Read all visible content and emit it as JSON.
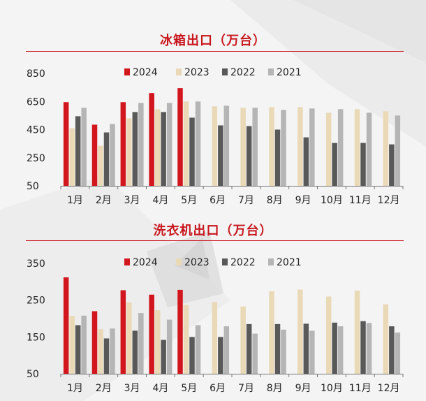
{
  "colors": {
    "accent": "#c8161d",
    "y2024": "#d2161e",
    "y2023": "#ead9b7",
    "y2022": "#595959",
    "y2021": "#b5b5b5"
  },
  "legend": [
    "2024",
    "2023",
    "2022",
    "2021"
  ],
  "chart_data": [
    {
      "type": "bar",
      "title": "冰箱出口（万台）",
      "categories": [
        "1月",
        "2月",
        "3月",
        "4月",
        "5月",
        "6月",
        "7月",
        "8月",
        "9月",
        "10月",
        "11月",
        "12月"
      ],
      "ylim": [
        50,
        850
      ],
      "yticks": [
        50,
        250,
        450,
        650,
        850
      ],
      "series": [
        {
          "name": "2024",
          "values": [
            645,
            485,
            645,
            710,
            745,
            null,
            null,
            null,
            null,
            null,
            null,
            null
          ]
        },
        {
          "name": "2023",
          "values": [
            460,
            335,
            530,
            595,
            650,
            615,
            605,
            610,
            610,
            570,
            595,
            580
          ]
        },
        {
          "name": "2022",
          "values": [
            545,
            430,
            575,
            575,
            535,
            480,
            475,
            450,
            395,
            355,
            355,
            345
          ]
        },
        {
          "name": "2021",
          "values": [
            605,
            490,
            640,
            640,
            650,
            620,
            605,
            590,
            600,
            595,
            570,
            550
          ]
        }
      ]
    },
    {
      "type": "bar",
      "title": "洗衣机出口（万台）",
      "categories": [
        "1月",
        "2月",
        "3月",
        "4月",
        "5月",
        "6月",
        "7月",
        "8月",
        "9月",
        "10月",
        "11月",
        "12月"
      ],
      "ylim": [
        50,
        350
      ],
      "yticks": [
        50,
        150,
        250,
        350
      ],
      "series": [
        {
          "name": "2024",
          "values": [
            312,
            220,
            277,
            265,
            278,
            null,
            null,
            null,
            null,
            null,
            null,
            null
          ]
        },
        {
          "name": "2023",
          "values": [
            207,
            171,
            244,
            223,
            237,
            245,
            233,
            274,
            279,
            260,
            276,
            239
          ]
        },
        {
          "name": "2022",
          "values": [
            182,
            146,
            167,
            142,
            150,
            150,
            185,
            185,
            186,
            189,
            193,
            179
          ]
        },
        {
          "name": "2021",
          "values": [
            208,
            173,
            215,
            197,
            182,
            179,
            159,
            170,
            167,
            179,
            188,
            162
          ]
        }
      ]
    }
  ]
}
